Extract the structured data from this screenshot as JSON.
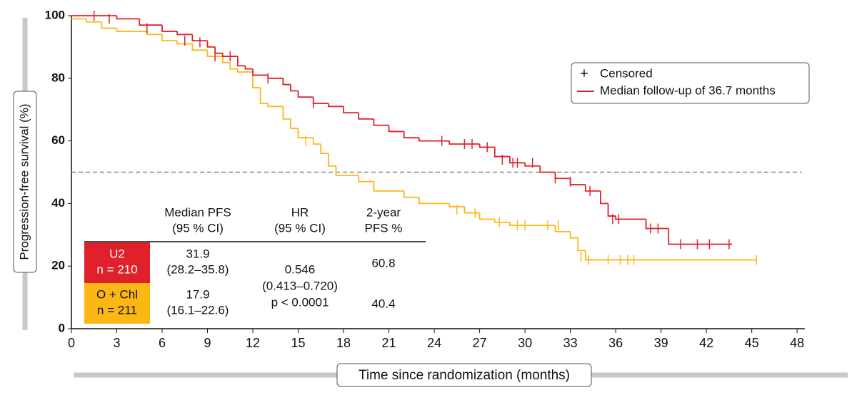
{
  "chart_data": {
    "type": "step",
    "xlabel": "Time since randomization (months)",
    "ylabel": "Progression-free survival (%)",
    "xlim": [
      0,
      48.5
    ],
    "ylim": [
      0,
      100
    ],
    "xticks": [
      0,
      3,
      6,
      9,
      12,
      15,
      18,
      21,
      24,
      27,
      30,
      33,
      36,
      39,
      42,
      45,
      48
    ],
    "yticks": [
      0,
      20,
      40,
      60,
      80,
      100
    ],
    "reference_line": 50,
    "series": [
      {
        "name": "U2",
        "color": "#e0202a",
        "x": [
          0,
          3,
          4.5,
          6,
          7,
          8,
          9,
          9.5,
          10,
          11,
          11.5,
          12,
          13,
          14,
          14.5,
          15,
          16,
          17,
          18,
          19,
          20,
          21,
          22,
          23,
          25,
          27,
          28,
          29,
          30,
          31,
          32,
          33,
          34,
          35,
          35.5,
          36,
          38,
          39.5,
          43.7
        ],
        "values": [
          100,
          99,
          97,
          95,
          94,
          92,
          90,
          88,
          87,
          84,
          83,
          81,
          80,
          78,
          76,
          74,
          72,
          71,
          69,
          67,
          65,
          63,
          61,
          60,
          59,
          58,
          55,
          53,
          52,
          50,
          48,
          46,
          44,
          40,
          36,
          35,
          32,
          27,
          27
        ],
        "censored_x": [
          1.5,
          2.5,
          5,
          7.5,
          8.5,
          9.5,
          10.5,
          13,
          16,
          24.5,
          26,
          26.5,
          27.5,
          28.5,
          29.2,
          29.5,
          30.5,
          32,
          33,
          34.3,
          35.8,
          36.2,
          38.3,
          38.8,
          40.3,
          41.4,
          42.2,
          43.5
        ],
        "censored_values": [
          100,
          99,
          96,
          92,
          91.5,
          87,
          87,
          80,
          72,
          60,
          59,
          59,
          58,
          54,
          53,
          53,
          53,
          48,
          47,
          44,
          35,
          35,
          32,
          32,
          27,
          27,
          27,
          27
        ]
      },
      {
        "name": "O + Chl",
        "color": "#fbb814",
        "x": [
          0,
          1,
          2,
          3,
          5,
          6,
          7,
          8,
          9,
          10,
          10.5,
          11,
          12,
          12.5,
          13,
          14,
          14.5,
          15,
          16,
          16.5,
          17,
          17.5,
          19,
          20,
          22,
          23,
          25,
          26,
          27,
          28,
          29,
          32,
          33,
          33.5,
          34,
          45.3
        ],
        "values": [
          99,
          98,
          96,
          95,
          94,
          92,
          91,
          89,
          87,
          85,
          83,
          82,
          77,
          72,
          71,
          67,
          64,
          61,
          59,
          56,
          52,
          49,
          47,
          44,
          42,
          40,
          39,
          37,
          35,
          34,
          33,
          31,
          29,
          25,
          22,
          22
        ],
        "censored_x": [
          15.5,
          25.5,
          26.7,
          28.3,
          29.5,
          30,
          31.5,
          32.2,
          33.7,
          34.2,
          35.5,
          36.3,
          36.8,
          37.2,
          45.3
        ],
        "censored_values": [
          60,
          38,
          37,
          34,
          33,
          33,
          33,
          33,
          23,
          22,
          22,
          22,
          22,
          22,
          22
        ]
      }
    ],
    "legend": {
      "censored": "Censored",
      "follow_up": "Median follow-up of 36.7 months"
    },
    "table": {
      "headers": [
        [
          "Median PFS",
          "(95 % CI)"
        ],
        [
          "HR",
          "(95 % CI)"
        ],
        [
          "2-year",
          "PFS %"
        ]
      ],
      "rows": [
        {
          "n": "n = 210",
          "median": 31.9,
          "ci": "(28.2–35.8)",
          "pfs2": 60.8
        },
        {
          "n": "n = 211",
          "median": 17.9,
          "ci": "(16.1–22.6)",
          "pfs2": 40.4
        }
      ],
      "hr": [
        0.546,
        "(0.413–0.720)",
        "p < 0.0001"
      ]
    }
  }
}
